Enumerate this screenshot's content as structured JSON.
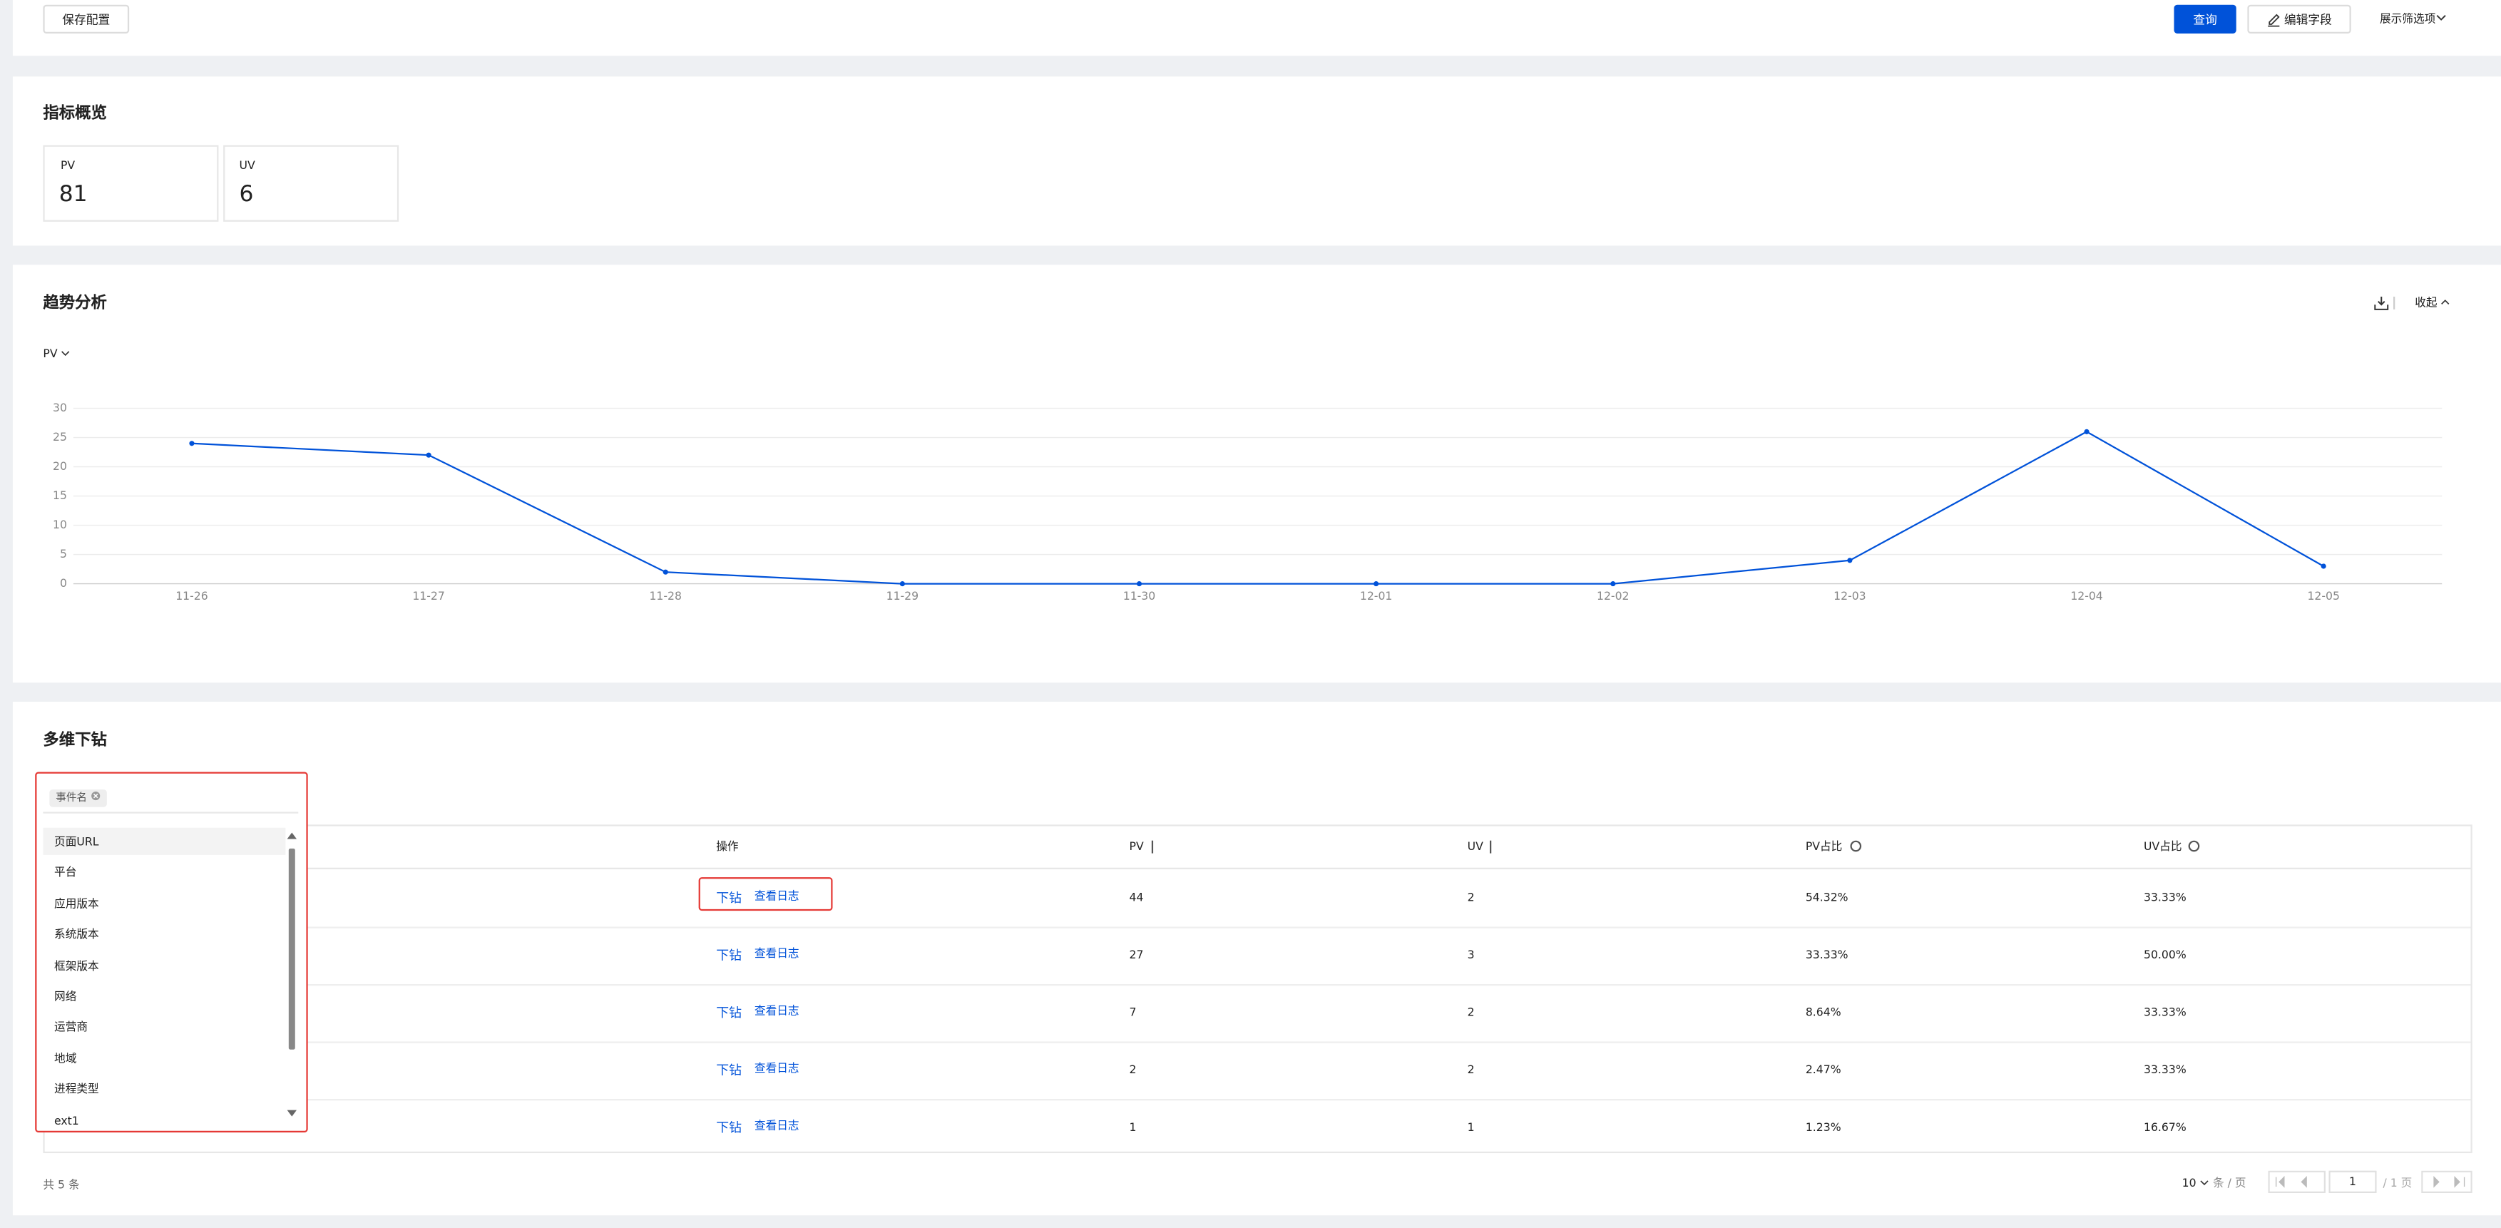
{
  "toolbar": {
    "save_button": "保存配置",
    "query_button": "查询",
    "edit_fields_button": "编辑字段",
    "filter_toggle": "展示筛选项"
  },
  "overview": {
    "title": "指标概览",
    "metrics": [
      {
        "label": "PV",
        "value": 81
      },
      {
        "label": "UV",
        "value": 6
      }
    ]
  },
  "trend": {
    "title": "趋势分析",
    "collapse_button": "收起",
    "metric_select": "PV"
  },
  "chart_data": {
    "type": "line",
    "categories": [
      "11-26",
      "11-27",
      "11-28",
      "11-29",
      "11-30",
      "12-01",
      "12-02",
      "12-03",
      "12-04",
      "12-05"
    ],
    "values": [
      24,
      22,
      2,
      0,
      0,
      0,
      0,
      4,
      26,
      3
    ],
    "color": "#0052d9",
    "ylim": [
      0,
      30
    ],
    "yticks": [
      0,
      5,
      10,
      15,
      20,
      25,
      30
    ],
    "grid": true
  },
  "drilldown": {
    "title": "多维下钻",
    "dimension_select": {
      "selected_tag": "事件名",
      "options": [
        "页面URL",
        "平台",
        "应用版本",
        "系统版本",
        "框架版本",
        "网络",
        "运营商",
        "地域",
        "进程类型",
        "ext1"
      ]
    },
    "table": {
      "columns": [
        "操作",
        "PV",
        "UV",
        "PV占比",
        "UV占比"
      ],
      "rows": [
        {
          "drill": "下钻",
          "view_log": "查看日志",
          "pv": 44,
          "uv": 2,
          "pv_share": "54.32%",
          "uv_share": "33.33%"
        },
        {
          "drill": "下钻",
          "view_log": "查看日志",
          "pv": 27,
          "uv": 3,
          "pv_share": "33.33%",
          "uv_share": "50.00%"
        },
        {
          "drill": "下钻",
          "view_log": "查看日志",
          "pv": 7,
          "uv": 2,
          "pv_share": "8.64%",
          "uv_share": "33.33%"
        },
        {
          "drill": "下钻",
          "view_log": "查看日志",
          "pv": 2,
          "uv": 2,
          "pv_share": "2.47%",
          "uv_share": "33.33%"
        },
        {
          "drill": "下钻",
          "view_log": "查看日志",
          "pv": 1,
          "uv": 1,
          "pv_share": "1.23%",
          "uv_share": "16.67%"
        }
      ]
    },
    "footer": {
      "total": "共 5 条",
      "page_size": "10",
      "page_size_unit": "条 / 页",
      "page_input": "1",
      "page_total": "/ 1 页"
    }
  }
}
